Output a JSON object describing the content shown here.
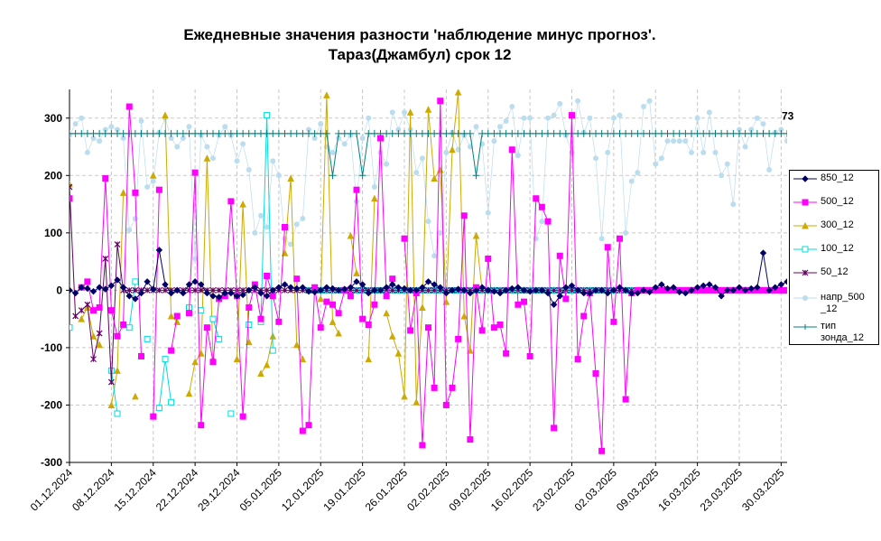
{
  "chart_data": {
    "type": "line",
    "title_line1": "Ежедневные значения разности 'наблюдение минус прогноз'.",
    "title_line2": "Тараз(Джамбул)    срок 12",
    "ylim": [
      -300,
      350
    ],
    "y_ticks": [
      -300,
      -200,
      -100,
      0,
      100,
      200,
      300
    ],
    "x_tick_labels": [
      "01.12.2024",
      "08.12.2024",
      "15.12.2024",
      "22.12.2024",
      "29.12.2024",
      "05.01.2025",
      "12.01.2025",
      "19.01.2025",
      "26.01.2025",
      "02.02.2025",
      "09.02.2025",
      "16.02.2025",
      "23.02.2025",
      "02.03.2025",
      "09.03.2025",
      "16.03.2025",
      "23.03.2025",
      "30.03.2025"
    ],
    "days": 121,
    "grid": true,
    "legend_position": "right",
    "annotation": "73",
    "series": [
      {
        "name": "850_12",
        "color": "#000066",
        "marker": "diamond",
        "values": [
          0,
          -5,
          5,
          3,
          -2,
          5,
          2,
          8,
          18,
          5,
          -10,
          -15,
          -5,
          15,
          2,
          70,
          10,
          -5,
          0,
          -5,
          10,
          15,
          10,
          -5,
          -10,
          -12,
          -5,
          -5,
          -10,
          -8,
          0,
          5,
          -5,
          -10,
          0,
          5,
          10,
          5,
          3,
          5,
          -2,
          -3,
          0,
          5,
          3,
          0,
          2,
          5,
          15,
          10,
          -5,
          0,
          0,
          5,
          10,
          5,
          3,
          0,
          0,
          5,
          15,
          10,
          5,
          -5,
          0,
          2,
          0,
          -5,
          0,
          5,
          0,
          -2,
          -5,
          0,
          3,
          5,
          0,
          -2,
          0,
          0,
          -5,
          -25,
          -10,
          5,
          8,
          0,
          -5,
          -5,
          0,
          0,
          -5,
          0,
          5,
          0,
          -5,
          -5,
          0,
          -3,
          5,
          10,
          3,
          5,
          -3,
          -5,
          0,
          5,
          8,
          10,
          5,
          -10,
          0,
          0,
          5,
          0,
          3,
          5,
          65,
          0,
          5,
          10,
          15
        ]
      },
      {
        "name": "500_12",
        "color": "#FF00FF",
        "marker": "square",
        "values": [
          160,
          null,
          5,
          15,
          -35,
          -30,
          195,
          -35,
          -80,
          -60,
          320,
          170,
          -115,
          null,
          -220,
          175,
          null,
          -105,
          -45,
          null,
          -40,
          205,
          -235,
          -65,
          -125,
          -15,
          -10,
          155,
          -10,
          -220,
          -30,
          10,
          -50,
          25,
          -10,
          -55,
          110,
          null,
          20,
          -245,
          -235,
          5,
          -65,
          -20,
          -25,
          -40,
          0,
          -10,
          175,
          -50,
          -60,
          -25,
          265,
          -10,
          20,
          null,
          90,
          -70,
          -5,
          -270,
          -65,
          -170,
          330,
          -200,
          -170,
          -85,
          130,
          -260,
          5,
          -70,
          55,
          -65,
          -60,
          -110,
          245,
          -25,
          -20,
          -115,
          160,
          145,
          120,
          -240,
          60,
          -15,
          305,
          -120,
          -45,
          -5,
          -145,
          -280,
          75,
          -55,
          90,
          -190,
          -5,
          0,
          0,
          0,
          0,
          0,
          0,
          0,
          0,
          0,
          0,
          0,
          0,
          0,
          0,
          0,
          0,
          0,
          0,
          0,
          0,
          0,
          0,
          0,
          0,
          0,
          0
        ]
      },
      {
        "name": "300_12",
        "color": "#CCAA00",
        "marker": "triangle",
        "values": [
          185,
          null,
          -50,
          -30,
          -80,
          -95,
          null,
          -200,
          -140,
          170,
          null,
          -185,
          null,
          null,
          200,
          null,
          305,
          -45,
          -55,
          null,
          -180,
          -125,
          -110,
          230,
          -120,
          null,
          null,
          null,
          -120,
          150,
          -90,
          null,
          -145,
          -130,
          -80,
          null,
          65,
          195,
          -95,
          -120,
          null,
          null,
          -15,
          340,
          -55,
          -75,
          null,
          95,
          30,
          null,
          -120,
          160,
          null,
          -40,
          -80,
          -110,
          -185,
          310,
          -195,
          -30,
          315,
          195,
          210,
          -20,
          245,
          345,
          -45,
          -105,
          95,
          0,
          0,
          0,
          0,
          0,
          0,
          0,
          0,
          0,
          0,
          0,
          0,
          0,
          0,
          0,
          0,
          0,
          0,
          0,
          0,
          0,
          0,
          0,
          0,
          0,
          0,
          0,
          0,
          0,
          0,
          0,
          0,
          0,
          0,
          0,
          0,
          0,
          0,
          0,
          0,
          0,
          0,
          0,
          0,
          0,
          0,
          0,
          0,
          0,
          0,
          0,
          0
        ]
      },
      {
        "name": "100_12",
        "color": "#00DDDD",
        "marker": "square-open",
        "values": [
          -65,
          null,
          null,
          null,
          null,
          null,
          null,
          -140,
          -215,
          null,
          -65,
          15,
          null,
          -85,
          null,
          -205,
          -120,
          -195,
          null,
          null,
          -30,
          null,
          -35,
          null,
          -50,
          -85,
          null,
          -215,
          null,
          null,
          -60,
          null,
          -55,
          305,
          -105,
          null,
          null,
          null,
          null,
          null,
          0,
          0,
          0,
          0,
          0,
          0,
          0,
          0,
          0,
          0,
          0,
          0,
          0,
          0,
          0,
          0,
          0,
          0,
          0,
          0,
          0,
          0,
          0,
          0,
          0,
          0,
          0,
          0,
          0,
          0,
          0,
          0,
          0,
          0,
          0,
          0,
          0,
          0,
          0,
          0,
          0,
          0,
          0,
          0,
          0,
          0,
          0,
          0,
          0,
          0,
          0,
          0,
          0,
          0,
          0,
          0,
          0,
          0,
          0,
          0,
          0,
          0,
          0,
          0,
          0,
          0,
          0,
          0,
          0,
          0,
          0,
          0,
          0,
          0,
          0,
          0,
          0,
          0,
          0,
          0,
          0
        ]
      },
      {
        "name": "50_12",
        "color": "#660066",
        "marker": "star",
        "values": [
          180,
          -45,
          -35,
          -25,
          -120,
          -75,
          55,
          -160,
          80,
          0,
          0,
          0,
          0,
          0,
          0,
          0,
          0,
          0,
          0,
          0,
          0,
          0,
          0,
          0,
          0,
          0,
          0,
          0,
          0,
          0,
          0,
          0,
          0,
          0,
          0,
          0,
          0,
          0,
          0,
          0,
          0,
          0,
          0,
          0,
          0,
          0,
          0,
          0,
          0,
          0,
          0,
          0,
          0,
          0,
          0,
          0,
          0,
          0,
          0,
          0,
          0,
          0,
          0,
          0,
          0,
          0,
          0,
          0,
          0,
          0,
          0,
          0,
          0,
          0,
          0,
          0,
          0,
          0,
          0,
          0,
          0,
          0,
          0,
          0,
          0,
          0,
          0,
          0,
          0,
          0,
          0,
          0,
          0,
          0,
          0,
          0,
          0,
          0,
          0,
          0,
          0,
          0,
          0,
          0,
          0,
          0,
          0,
          0,
          0,
          0,
          0,
          0,
          0,
          0,
          0,
          0,
          0,
          0,
          0,
          0,
          0
        ]
      },
      {
        "name": "напр_500\n_12",
        "color": "#BBDDEE",
        "marker": "circle",
        "values": [
          270,
          290,
          300,
          240,
          265,
          260,
          280,
          285,
          280,
          265,
          105,
          125,
          295,
          180,
          190,
          275,
          300,
          265,
          250,
          265,
          285,
          55,
          270,
          250,
          230,
          270,
          285,
          270,
          225,
          255,
          210,
          100,
          130,
          110,
          225,
          200,
          90,
          80,
          115,
          125,
          280,
          265,
          290,
          250,
          240,
          265,
          255,
          270,
          155,
          265,
          300,
          180,
          240,
          220,
          310,
          280,
          310,
          280,
          205,
          230,
          120,
          60,
          100,
          240,
          275,
          245,
          270,
          250,
          285,
          255,
          135,
          260,
          285,
          295,
          320,
          235,
          300,
          300,
          90,
          120,
          300,
          305,
          325,
          270,
          240,
          330,
          275,
          300,
          230,
          90,
          240,
          300,
          305,
          100,
          190,
          205,
          320,
          330,
          220,
          230,
          260,
          260,
          260,
          260,
          240,
          300,
          240,
          310,
          240,
          200,
          220,
          150,
          280,
          250,
          280,
          300,
          290,
          210,
          275,
          280,
          260
        ]
      },
      {
        "name": "тип\nзонда_12",
        "color": "#008080",
        "marker": "plus",
        "values": [
          273,
          273,
          273,
          273,
          273,
          273,
          273,
          273,
          273,
          273,
          273,
          273,
          273,
          273,
          273,
          273,
          273,
          273,
          273,
          273,
          273,
          273,
          273,
          273,
          273,
          273,
          273,
          273,
          273,
          273,
          273,
          273,
          273,
          273,
          273,
          273,
          273,
          273,
          273,
          273,
          273,
          273,
          273,
          273,
          200,
          273,
          273,
          273,
          273,
          200,
          273,
          273,
          273,
          273,
          273,
          273,
          273,
          273,
          273,
          273,
          273,
          273,
          273,
          273,
          273,
          273,
          273,
          273,
          200,
          273,
          273,
          273,
          273,
          273,
          273,
          273,
          273,
          273,
          273,
          273,
          273,
          273,
          273,
          273,
          273,
          273,
          273,
          273,
          273,
          273,
          273,
          273,
          273,
          273,
          273,
          273,
          273,
          273,
          273,
          273,
          273,
          273,
          273,
          273,
          273,
          273,
          273,
          273,
          273,
          273,
          273,
          273,
          273,
          273,
          273,
          273,
          273,
          273,
          273,
          273,
          273
        ]
      }
    ]
  }
}
